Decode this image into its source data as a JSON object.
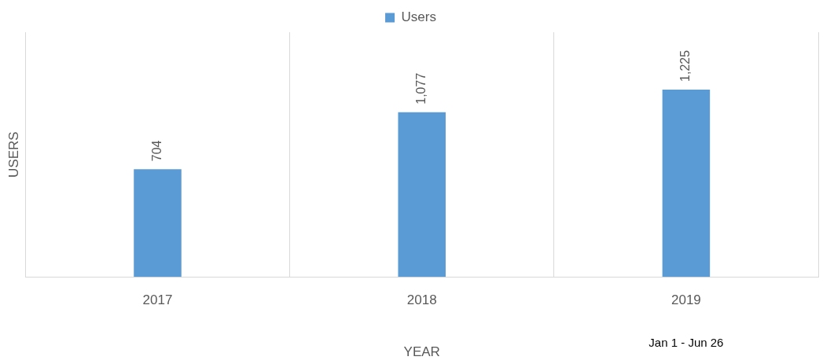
{
  "chart_data": {
    "type": "bar",
    "categories": [
      "2017",
      "2018",
      "2019"
    ],
    "series": [
      {
        "name": "Users",
        "color": "#5b9bd5",
        "values": [
          704,
          1077,
          1225
        ],
        "value_labels": [
          "704",
          "1,077",
          "1,225"
        ]
      }
    ],
    "xlabel": "YEAR",
    "ylabel": "USERS",
    "legend": "top",
    "grid": "x",
    "annotations": [
      "Jan 1 - Jun 26"
    ]
  }
}
